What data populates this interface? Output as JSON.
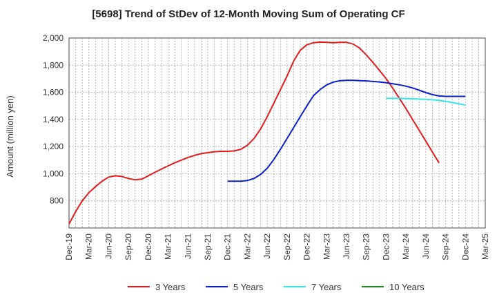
{
  "title": "[5698]  Trend of StDev of 12-Month Moving Sum of Operating CF",
  "colors": {
    "three_years": "#e41a1c",
    "five_years": "#0a1ecf",
    "seven_years": "#33e6e6",
    "ten_years": "#1a8a1a",
    "grid": "#999999"
  },
  "chart_data": {
    "type": "line",
    "title": "[5698]  Trend of StDev of 12-Month Moving Sum of Operating CF",
    "xlabel": "",
    "ylabel": "Amount (million yen)",
    "ylim": [
      600,
      2000
    ],
    "yticks": [
      800,
      1000,
      1200,
      1400,
      1600,
      1800,
      2000
    ],
    "ytick_labels": [
      "800",
      "1,000",
      "1,200",
      "1,400",
      "1,600",
      "1,800",
      "2,000"
    ],
    "x_ticks": [
      "Dec-19",
      "Mar-20",
      "Jun-20",
      "Sep-20",
      "Dec-20",
      "Mar-21",
      "Jun-21",
      "Sep-21",
      "Dec-21",
      "Mar-22",
      "Jun-22",
      "Sep-22",
      "Dec-22",
      "Mar-23",
      "Jun-23",
      "Sep-23",
      "Dec-23",
      "Mar-24",
      "Jun-24",
      "Sep-24",
      "Dec-24",
      "Mar-25"
    ],
    "grid": true,
    "legend_position": "bottom",
    "series": [
      {
        "name": "3 Years",
        "color_key": "three_years",
        "start": "Dec-19",
        "values": [
          630,
          720,
          800,
          860,
          905,
          945,
          975,
          985,
          980,
          965,
          955,
          960,
          985,
          1010,
          1035,
          1058,
          1080,
          1100,
          1120,
          1135,
          1148,
          1155,
          1162,
          1165,
          1165,
          1168,
          1180,
          1210,
          1260,
          1330,
          1420,
          1520,
          1620,
          1720,
          1830,
          1910,
          1950,
          1965,
          1970,
          1968,
          1965,
          1968,
          1968,
          1955,
          1925,
          1875,
          1820,
          1760,
          1700,
          1630,
          1555,
          1480,
          1400,
          1320,
          1240,
          1160,
          1080
        ]
      },
      {
        "name": "5 Years",
        "color_key": "five_years",
        "start": "Dec-21",
        "values": [
          945,
          945,
          945,
          950,
          965,
          995,
          1040,
          1105,
          1180,
          1260,
          1340,
          1420,
          1500,
          1575,
          1620,
          1655,
          1675,
          1685,
          1688,
          1688,
          1686,
          1684,
          1680,
          1676,
          1670,
          1663,
          1655,
          1645,
          1632,
          1615,
          1598,
          1583,
          1573,
          1570,
          1570,
          1570,
          1570
        ]
      },
      {
        "name": "7 Years",
        "color_key": "seven_years",
        "start": "Dec-23",
        "values": [
          1555,
          1555,
          1555,
          1553,
          1552,
          1550,
          1548,
          1545,
          1540,
          1533,
          1525,
          1515,
          1505
        ]
      },
      {
        "name": "10 Years",
        "color_key": "ten_years",
        "start": "Dec-24",
        "values": []
      }
    ]
  }
}
